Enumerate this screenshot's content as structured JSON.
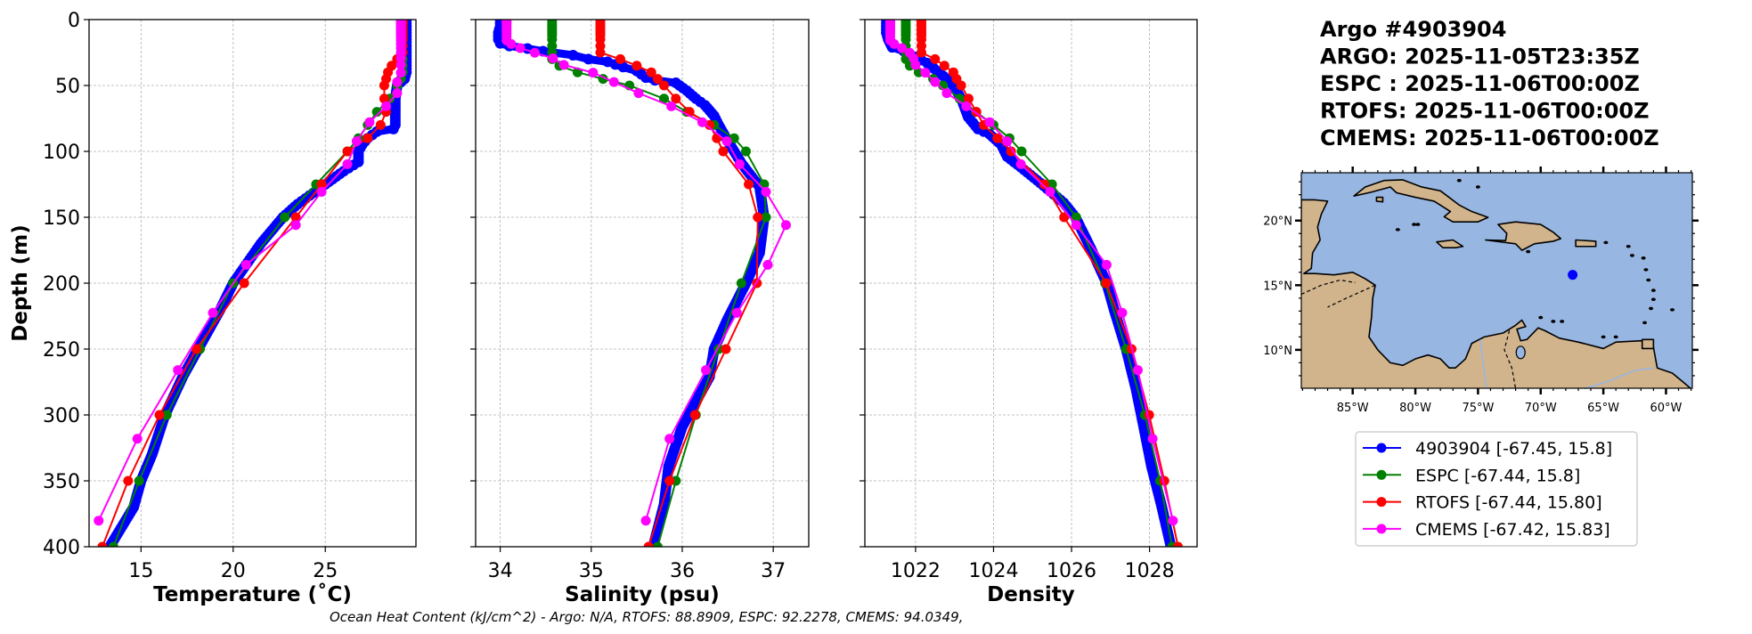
{
  "header": {
    "lines": [
      "Argo #4903904",
      "ARGO: 2025-11-05T23:35Z",
      "ESPC : 2025-11-06T00:00Z",
      "RTOFS: 2025-11-06T00:00Z",
      "CMEMS: 2025-11-06T00:00Z"
    ]
  },
  "caption": "Ocean Heat Content (kJ/cm^2) - Argo: N/A,  RTOFS: 88.8909,  ESPC: 92.2278,  CMEMS: 94.0349,",
  "legend": {
    "items": [
      {
        "label": "4903904 [-67.45, 15.8]",
        "color": "#0000ff"
      },
      {
        "label": "ESPC [-67.44, 15.8]",
        "color": "#008000"
      },
      {
        "label": "RTOFS [-67.44, 15.80]",
        "color": "#ff0000"
      },
      {
        "label": "CMEMS [-67.42, 15.83]",
        "color": "#ff00ff"
      }
    ]
  },
  "map": {
    "lon_range": [
      -89.1,
      -57.9
    ],
    "lat_range": [
      7.03,
      23.7
    ],
    "lon_ticks": [
      {
        "value": -85,
        "label": "85°W"
      },
      {
        "value": -80,
        "label": "80°W"
      },
      {
        "value": -75,
        "label": "75°W"
      },
      {
        "value": -70,
        "label": "70°W"
      },
      {
        "value": -65,
        "label": "65°W"
      },
      {
        "value": -60,
        "label": "60°W"
      }
    ],
    "lat_ticks": [
      {
        "value": 10,
        "label": "10°N"
      },
      {
        "value": 15,
        "label": "15°N"
      },
      {
        "value": 20,
        "label": "20°N"
      }
    ],
    "float_position": [
      -67.45,
      15.8
    ],
    "float_color": "#0000ff",
    "ocean_color": "#97b6e1",
    "land_color": "#d2b48c"
  },
  "chart_data": [
    {
      "type": "line",
      "xlabel": "Temperature (˚C)",
      "ylabel": "Depth (m)",
      "xlim": [
        12.18,
        29.92
      ],
      "ylim": [
        400,
        0
      ],
      "xticks": [
        15,
        20,
        25
      ],
      "xtick_labels": [
        "15",
        "20",
        "25"
      ],
      "yticks": [
        0,
        50,
        100,
        150,
        200,
        250,
        300,
        350,
        400
      ],
      "ytick_labels": [
        "0",
        "50",
        "100",
        "150",
        "200",
        "250",
        "300",
        "350",
        "400"
      ],
      "grid": true,
      "series": [
        {
          "name": "4903904",
          "color": "#0000ff",
          "depth": [
            0,
            5,
            10,
            15,
            20,
            25,
            30,
            35,
            40,
            45,
            50,
            60,
            70,
            80,
            83,
            85,
            90,
            95,
            100,
            108,
            115,
            125,
            140,
            150,
            170,
            190,
            200,
            220,
            250,
            270,
            300,
            330,
            350,
            370,
            400
          ],
          "values": [
            29.4,
            29.4,
            29.4,
            29.4,
            29.4,
            29.4,
            29.4,
            29.4,
            29.4,
            29.3,
            28.9,
            28.8,
            28.8,
            28.8,
            28.7,
            27.8,
            27.3,
            27.0,
            26.8,
            26.8,
            26.0,
            25.0,
            23.5,
            22.7,
            21.5,
            20.5,
            20.0,
            19.3,
            18.1,
            17.3,
            16.3,
            15.6,
            15.0,
            14.6,
            13.3
          ]
        },
        {
          "name": "ESPC",
          "color": "#008000",
          "depth": [
            0,
            2,
            4,
            6,
            8,
            10,
            12,
            15,
            20,
            25,
            30,
            35,
            40,
            45,
            50,
            60,
            70,
            80,
            90,
            100,
            125,
            150,
            200,
            250,
            300,
            350,
            400
          ],
          "values": [
            29.2,
            29.2,
            29.2,
            29.2,
            29.2,
            29.2,
            29.2,
            29.2,
            29.2,
            29.2,
            29.2,
            29.2,
            29.2,
            29.1,
            28.9,
            28.5,
            27.8,
            27.3,
            26.8,
            26.2,
            24.5,
            22.8,
            20.0,
            18.2,
            16.4,
            14.9,
            13.5
          ]
        },
        {
          "name": "RTOFS",
          "color": "#ff0000",
          "depth": [
            0,
            2,
            4,
            6,
            8,
            10,
            12,
            15,
            20,
            25,
            30,
            35,
            40,
            45,
            50,
            60,
            70,
            80,
            90,
            100,
            125,
            150,
            200,
            250,
            300,
            350,
            400
          ],
          "values": [
            29.2,
            29.2,
            29.2,
            29.2,
            29.2,
            29.2,
            29.2,
            29.2,
            29.2,
            29.2,
            28.9,
            28.6,
            28.4,
            28.3,
            28.2,
            28.2,
            28.3,
            28.0,
            27.3,
            26.2,
            24.8,
            23.4,
            20.6,
            18.0,
            16.0,
            14.3,
            12.9
          ]
        },
        {
          "name": "CMEMS",
          "color": "#ff00ff",
          "depth": [
            0.5,
            1.5,
            2.6,
            3.8,
            5.1,
            6.4,
            7.9,
            9.6,
            11.4,
            13.5,
            15.8,
            18.5,
            21.6,
            25.2,
            29.4,
            34.4,
            40.3,
            47.4,
            55.8,
            65.8,
            77.9,
            92.3,
            109.7,
            130.7,
            155.9,
            186.1,
            222.5,
            266.0,
            318.1,
            380.2
          ],
          "values": [
            29.1,
            29.1,
            29.1,
            29.1,
            29.1,
            29.1,
            29.1,
            29.1,
            29.1,
            29.1,
            29.1,
            29.1,
            29.1,
            29.1,
            29.1,
            29.1,
            29.1,
            28.9,
            28.9,
            28.3,
            27.4,
            26.7,
            26.2,
            24.8,
            23.4,
            20.7,
            18.9,
            17.0,
            14.8,
            12.7
          ]
        }
      ]
    },
    {
      "type": "line",
      "xlabel": "Salinity (psu)",
      "ylabel": "",
      "xlim": [
        33.73,
        37.39
      ],
      "ylim": [
        400,
        0
      ],
      "xticks": [
        34,
        35,
        36,
        37
      ],
      "xtick_labels": [
        "34",
        "35",
        "36",
        "37"
      ],
      "yticks": [
        0,
        50,
        100,
        150,
        200,
        250,
        300,
        350,
        400
      ],
      "grid": true,
      "series": [
        {
          "name": "4903904",
          "color": "#0000ff",
          "depth": [
            0,
            5,
            10,
            15,
            18,
            20,
            22,
            24,
            27,
            30,
            32,
            36,
            39,
            44,
            46,
            48,
            54,
            60,
            65,
            73,
            80,
            92,
            109,
            127,
            150,
            177,
            200,
            227,
            250,
            271,
            309,
            339,
            368,
            400
          ],
          "values": [
            34.0,
            34.0,
            33.98,
            33.98,
            34.0,
            34.1,
            34.3,
            34.47,
            34.8,
            34.97,
            35.18,
            35.35,
            35.5,
            35.6,
            35.7,
            35.93,
            36.05,
            36.15,
            36.25,
            36.35,
            36.4,
            36.5,
            36.65,
            36.85,
            36.9,
            36.85,
            36.7,
            36.5,
            36.35,
            36.3,
            36.0,
            35.85,
            35.8,
            35.68
          ]
        },
        {
          "name": "ESPC",
          "color": "#008000",
          "depth": [
            0,
            2,
            4,
            6,
            8,
            10,
            12,
            15,
            20,
            25,
            30,
            35,
            40,
            45,
            50,
            60,
            70,
            80,
            90,
            100,
            125,
            150,
            200,
            250,
            300,
            350,
            400
          ],
          "values": [
            34.57,
            34.57,
            34.57,
            34.57,
            34.57,
            34.57,
            34.57,
            34.57,
            34.57,
            34.57,
            34.57,
            34.65,
            34.85,
            35.13,
            35.42,
            35.8,
            36.05,
            36.35,
            36.57,
            36.7,
            36.9,
            36.92,
            36.65,
            36.4,
            36.15,
            35.93,
            35.73
          ]
        },
        {
          "name": "RTOFS",
          "color": "#ff0000",
          "depth": [
            0,
            2,
            4,
            6,
            8,
            10,
            12,
            15,
            20,
            25,
            30,
            35,
            40,
            45,
            50,
            60,
            70,
            80,
            90,
            100,
            125,
            150,
            200,
            250,
            300,
            350,
            400
          ],
          "values": [
            35.1,
            35.1,
            35.1,
            35.1,
            35.1,
            35.1,
            35.1,
            35.1,
            35.1,
            35.1,
            35.32,
            35.5,
            35.66,
            35.73,
            35.8,
            35.93,
            36.08,
            36.3,
            36.38,
            36.45,
            36.73,
            36.83,
            36.82,
            36.48,
            36.14,
            35.86,
            35.63
          ]
        },
        {
          "name": "CMEMS",
          "color": "#ff00ff",
          "depth": [
            0.5,
            1.5,
            2.6,
            3.8,
            5.1,
            6.4,
            7.9,
            9.6,
            11.4,
            13.5,
            15.8,
            18.5,
            21.6,
            25.2,
            29.4,
            34.4,
            40.3,
            47.4,
            55.8,
            65.8,
            77.9,
            92.3,
            109.7,
            130.7,
            155.9,
            186.1,
            222.5,
            266.0,
            318.1,
            380.2
          ],
          "values": [
            34.07,
            34.07,
            34.07,
            34.07,
            34.07,
            34.07,
            34.07,
            34.07,
            34.07,
            34.07,
            34.07,
            34.12,
            34.22,
            34.38,
            34.58,
            34.7,
            35.02,
            35.25,
            35.52,
            35.88,
            36.22,
            36.49,
            36.63,
            36.92,
            37.14,
            36.94,
            36.6,
            36.26,
            35.86,
            35.6
          ]
        }
      ]
    },
    {
      "type": "line",
      "xlabel": "Density",
      "ylabel": "",
      "xlim": [
        1020.7,
        1029.22
      ],
      "ylim": [
        400,
        0
      ],
      "xticks": [
        1022,
        1024,
        1026,
        1028
      ],
      "xtick_labels": [
        "1022",
        "1024",
        "1026",
        "1028"
      ],
      "yticks": [
        0,
        50,
        100,
        150,
        200,
        250,
        300,
        350,
        400
      ],
      "grid": true,
      "series": [
        {
          "name": "4903904",
          "color": "#0000ff",
          "depth": [
            0,
            5,
            10,
            15,
            21,
            24,
            33,
            45,
            51,
            62,
            74,
            83,
            87,
            95,
            104,
            112,
            124,
            139,
            150,
            174,
            200,
            221,
            250,
            280,
            309,
            339,
            368,
            400
          ],
          "values": [
            1021.25,
            1021.25,
            1021.25,
            1021.3,
            1021.4,
            1021.7,
            1022.3,
            1022.8,
            1023.0,
            1023.2,
            1023.35,
            1023.6,
            1023.9,
            1024.2,
            1024.35,
            1024.7,
            1025.2,
            1025.8,
            1026.1,
            1026.5,
            1026.9,
            1027.1,
            1027.4,
            1027.65,
            1027.85,
            1028.05,
            1028.3,
            1028.55
          ]
        },
        {
          "name": "ESPC",
          "color": "#008000",
          "depth": [
            0,
            2,
            4,
            6,
            8,
            10,
            12,
            15,
            20,
            25,
            30,
            35,
            40,
            45,
            50,
            60,
            70,
            80,
            90,
            100,
            125,
            150,
            200,
            250,
            300,
            350,
            400
          ],
          "values": [
            1021.75,
            1021.75,
            1021.75,
            1021.75,
            1021.75,
            1021.75,
            1021.75,
            1021.75,
            1021.75,
            1021.75,
            1021.75,
            1021.85,
            1022.08,
            1022.45,
            1022.7,
            1023.13,
            1023.55,
            1024.0,
            1024.41,
            1024.72,
            1025.5,
            1026.12,
            1026.86,
            1027.4,
            1027.88,
            1028.27,
            1028.58
          ]
        },
        {
          "name": "RTOFS",
          "color": "#ff0000",
          "depth": [
            0,
            2,
            4,
            6,
            8,
            10,
            12,
            15,
            20,
            25,
            30,
            35,
            40,
            45,
            50,
            60,
            70,
            80,
            90,
            100,
            125,
            150,
            200,
            250,
            300,
            350,
            400
          ],
          "values": [
            1022.15,
            1022.15,
            1022.15,
            1022.15,
            1022.15,
            1022.15,
            1022.15,
            1022.15,
            1022.15,
            1022.15,
            1022.5,
            1022.74,
            1022.97,
            1023.05,
            1023.17,
            1023.36,
            1023.56,
            1023.75,
            1024.1,
            1024.45,
            1025.3,
            1025.81,
            1026.89,
            1027.54,
            1027.99,
            1028.38,
            1028.73
          ]
        },
        {
          "name": "CMEMS",
          "color": "#ff00ff",
          "depth": [
            0.5,
            1.5,
            2.6,
            3.8,
            5.1,
            6.4,
            7.9,
            9.6,
            11.4,
            13.5,
            15.8,
            18.5,
            21.6,
            25.2,
            29.4,
            34.4,
            40.3,
            47.4,
            55.8,
            65.8,
            77.9,
            92.3,
            109.7,
            130.7,
            155.9,
            186.1,
            222.5,
            266.0,
            318.1,
            380.2
          ],
          "values": [
            1021.35,
            1021.35,
            1021.35,
            1021.35,
            1021.35,
            1021.35,
            1021.35,
            1021.35,
            1021.35,
            1021.35,
            1021.35,
            1021.45,
            1021.65,
            1021.85,
            1021.95,
            1022.0,
            1022.25,
            1022.5,
            1022.8,
            1023.3,
            1023.9,
            1024.35,
            1024.7,
            1025.45,
            1026.12,
            1026.9,
            1027.3,
            1027.7,
            1028.08,
            1028.6
          ]
        }
      ]
    }
  ]
}
